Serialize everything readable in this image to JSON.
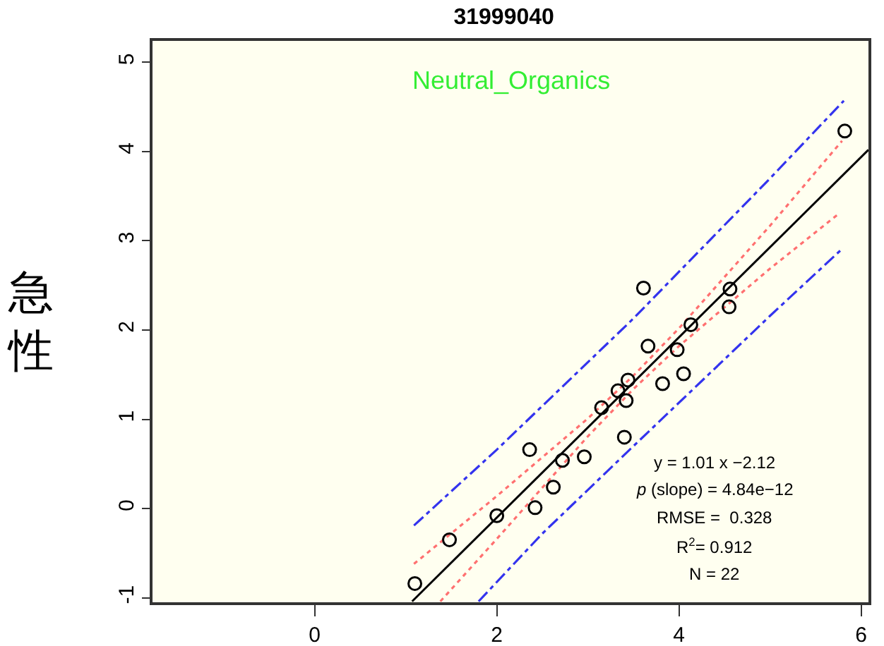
{
  "chart_data": {
    "type": "scatter",
    "title": "31999040",
    "ylabel": "急性",
    "xlim": [
      -1.78,
      6.08
    ],
    "xticks": [
      0,
      2,
      4,
      6
    ],
    "ylim": [
      -1.05,
      5.24
    ],
    "yticks": [
      -1,
      0,
      1,
      2,
      3,
      4,
      5
    ],
    "grid": false,
    "legend": false,
    "marker": "circle",
    "annotations": [
      "Neutral_Organics",
      "y = 1.01 x −2.12",
      "p (slope) = 4.84e−12",
      "RMSE =  0.328",
      "R$^{2}$= 0.912",
      "N = 22"
    ],
    "series": [
      {
        "color": "#000000",
        "x": [
          3.61,
          4.56,
          4.55,
          4.13,
          3.66,
          3.98,
          4.05,
          3.82,
          3.44,
          3.33,
          3.42,
          3.15,
          3.4,
          2.36,
          2.72,
          2.96,
          2.62,
          2.42,
          2.0,
          1.48,
          1.1,
          5.82
        ],
        "values": [
          2.47,
          2.46,
          2.26,
          2.06,
          1.82,
          1.78,
          1.51,
          1.4,
          1.44,
          1.32,
          1.21,
          1.13,
          0.8,
          0.66,
          0.54,
          0.58,
          0.24,
          0.01,
          -0.08,
          -0.35,
          -0.84,
          4.23
        ]
      },
      {
        "type": "line",
        "color": "#000000",
        "marker": "none",
        "line_style": "solid",
        "x": [
          1.07,
          6.08
        ],
        "values": [
          -1.04,
          4.02
        ]
      },
      {
        "type": "line",
        "color": "#ff7070",
        "marker": "none",
        "line_style": "dotted",
        "x": [
          1.09,
          2,
          3,
          3.5,
          4,
          5,
          5.79
        ],
        "values": [
          -0.62,
          0.14,
          1.01,
          1.49,
          2.02,
          3.17,
          4.12
        ]
      },
      {
        "type": "line",
        "color": "#ff7070",
        "marker": "none",
        "line_style": "dotted",
        "x": [
          1.38,
          2,
          3,
          3.5,
          4,
          5,
          5.75
        ],
        "values": [
          -1.04,
          -0.34,
          0.81,
          1.34,
          1.82,
          2.69,
          3.3
        ]
      },
      {
        "type": "line",
        "color": "#3333ee",
        "marker": "none",
        "line_style": "dashed",
        "x": [
          1.09,
          2,
          3.5,
          5,
          5.81
        ],
        "values": [
          -0.19,
          0.66,
          2.13,
          3.7,
          4.57
        ]
      },
      {
        "type": "line",
        "color": "#3333ee",
        "marker": "none",
        "line_style": "dashed",
        "x": [
          1.8,
          2.5,
          3.5,
          5,
          5.77
        ],
        "values": [
          -1.04,
          -0.28,
          0.7,
          2.16,
          2.89
        ]
      }
    ]
  }
}
